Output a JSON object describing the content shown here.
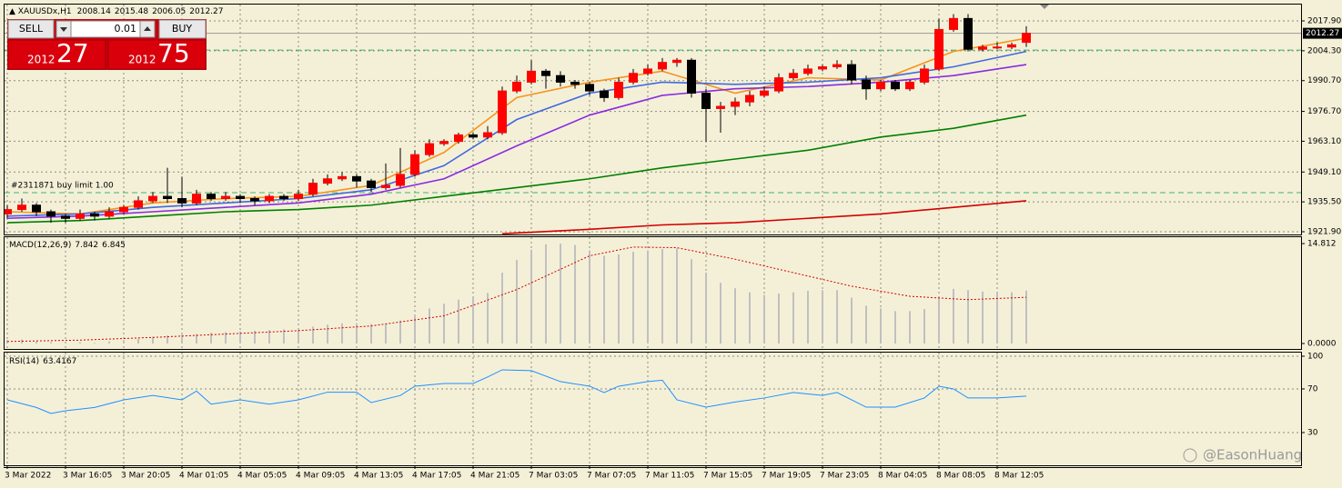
{
  "chart_data": [
    {
      "type": "candlestick",
      "title": "XAUUSDx,H1",
      "open": [
        1930,
        1932,
        1934,
        1931,
        1929,
        1928,
        1930,
        1929,
        1931,
        1933,
        1936,
        1938,
        1937,
        1935,
        1939,
        1937,
        1938,
        1937,
        1936,
        1938,
        1937,
        1939,
        1944,
        1946,
        1947,
        1945,
        1942,
        1943,
        1948,
        1957,
        1962,
        1963,
        1966,
        1965,
        1967,
        1986,
        1990,
        1995,
        1993,
        1990,
        1989,
        1986,
        1983,
        1990,
        1994,
        1996,
        1999,
        2000,
        1985,
        1978,
        1979,
        1981,
        1984,
        1986,
        1992,
        1994,
        1996,
        1997,
        1998,
        1991,
        1987,
        1990,
        1987,
        1990,
        1996,
        2014,
        2019,
        2005,
        2006,
        2006,
        2008.14
      ],
      "high": [
        1934,
        1937,
        1935,
        1932,
        1930,
        1932,
        1931,
        1933,
        1934,
        1938,
        1940,
        1951,
        1947,
        1941,
        1940,
        1940,
        1939,
        1938,
        1939,
        1939,
        1941,
        1946,
        1948,
        1949,
        1948,
        1946,
        1953,
        1960,
        1959,
        1964,
        1964,
        1967,
        1967,
        1970,
        1988,
        1993,
        2000,
        1996,
        1995,
        1991,
        1990,
        1987,
        1992,
        1996,
        1998,
        2001,
        2001,
        2001,
        1987,
        1981,
        1983,
        1986,
        1988,
        1994,
        1996,
        1998,
        1998,
        2000,
        2000,
        1993,
        1991,
        1991,
        1991,
        1998,
        2019,
        2021,
        2021,
        2007,
        2008,
        2008,
        2015.48
      ],
      "low": [
        1928,
        1931,
        1929,
        1926,
        1926,
        1927,
        1927,
        1928,
        1930,
        1932,
        1935,
        1935,
        1933,
        1934,
        1936,
        1936,
        1935,
        1934,
        1935,
        1936,
        1936,
        1938,
        1943,
        1945,
        1942,
        1940,
        1941,
        1942,
        1947,
        1956,
        1961,
        1962,
        1964,
        1964,
        1966,
        1985,
        1989,
        1987,
        1988,
        1987,
        1984,
        1981,
        1982,
        1989,
        1993,
        1995,
        1997,
        1983,
        1963,
        1967,
        1975,
        1979,
        1983,
        1985,
        1991,
        1993,
        1995,
        1996,
        1989,
        1982,
        1986,
        1986,
        1986,
        1989,
        1995,
        2013,
        2004,
        2004,
        2005,
        2005,
        2006.05
      ],
      "close": [
        1932,
        1934,
        1931,
        1929,
        1928,
        1930,
        1929,
        1931,
        1933,
        1936,
        1938,
        1937,
        1935,
        1939,
        1937,
        1938,
        1937,
        1936,
        1938,
        1937,
        1939,
        1944,
        1946,
        1947,
        1945,
        1942,
        1943,
        1948,
        1957,
        1962,
        1963,
        1966,
        1965,
        1967,
        1986,
        1990,
        1995,
        1993,
        1990,
        1989,
        1986,
        1983,
        1990,
        1994,
        1996,
        1999,
        2000,
        1985,
        1978,
        1979,
        1981,
        1984,
        1986,
        1992,
        1994,
        1996,
        1997,
        1998,
        1991,
        1987,
        1990,
        1987,
        1990,
        1996,
        2014,
        2019,
        2005,
        2006,
        2006,
        2007,
        2012.27
      ],
      "up_color": "#ff0000",
      "down_color": "#000000",
      "series": [
        {
          "color": "#f7941d",
          "x": [
            0,
            5,
            10,
            15,
            20,
            25,
            30,
            35,
            40,
            45,
            50,
            55,
            60,
            65,
            70
          ],
          "values": [
            1931,
            1930,
            1935,
            1937,
            1938,
            1943,
            1958,
            1983,
            1990,
            1995,
            1985,
            1992,
            1991,
            2004,
            2010
          ]
        },
        {
          "color": "#4169e1",
          "x": [
            0,
            5,
            10,
            15,
            20,
            25,
            30,
            35,
            40,
            45,
            50,
            55,
            60,
            65,
            70
          ],
          "values": [
            1929,
            1930,
            1933,
            1935,
            1937,
            1941,
            1952,
            1973,
            1985,
            1990,
            1989,
            1990,
            1992,
            1997,
            2004
          ]
        },
        {
          "color": "#8a2be2",
          "x": [
            0,
            5,
            10,
            15,
            20,
            25,
            30,
            35,
            40,
            45,
            50,
            55,
            60,
            65,
            70
          ],
          "values": [
            1928,
            1929,
            1931,
            1933,
            1935,
            1939,
            1946,
            1961,
            1975,
            1984,
            1987,
            1988,
            1990,
            1993,
            1998
          ]
        },
        {
          "color": "#008000",
          "x": [
            0,
            5,
            10,
            15,
            20,
            25,
            30,
            35,
            40,
            45,
            50,
            55,
            60,
            65,
            70
          ],
          "values": [
            1926,
            1927,
            1929,
            1931,
            1932,
            1934,
            1938,
            1942,
            1946,
            1951,
            1955,
            1959,
            1965,
            1969,
            1975
          ]
        },
        {
          "color": "#d40000",
          "x": [
            34,
            40,
            45,
            50,
            55,
            60,
            65,
            70
          ],
          "values": [
            1921,
            1923,
            1925,
            1926,
            1928,
            1930,
            1933,
            1936
          ]
        }
      ],
      "levels": [
        2004.6,
        1939.7
      ],
      "level_color": "#3cb371",
      "order_label": "#2311871 buy limit 1.00",
      "ylim": [
        1920.66,
        2025.35
      ],
      "yticks": [
        {
          "value": 2017.9,
          "label": "2017.90"
        },
        {
          "value": 2004.3,
          "label": "2004.30"
        },
        {
          "value": 1990.7,
          "label": "1990.70"
        },
        {
          "value": 1976.7,
          "label": "1976.70"
        },
        {
          "value": 1963.1,
          "label": "1963.10"
        },
        {
          "value": 1949.1,
          "label": "1949.10"
        },
        {
          "value": 1935.5,
          "label": "1935.50"
        },
        {
          "value": 1921.9,
          "label": "1921.90"
        }
      ],
      "xticks": [
        {
          "value": 0,
          "label": "3 Mar 2022"
        },
        {
          "value": 4,
          "label": "3 Mar 16:05"
        },
        {
          "value": 8,
          "label": "3 Mar 20:05"
        },
        {
          "value": 12,
          "label": "4 Mar 01:05"
        },
        {
          "value": 16,
          "label": "4 Mar 05:05"
        },
        {
          "value": 20,
          "label": "4 Mar 09:05"
        },
        {
          "value": 24,
          "label": "4 Mar 13:05"
        },
        {
          "value": 28,
          "label": "4 Mar 17:05"
        },
        {
          "value": 32,
          "label": "4 Mar 21:05"
        },
        {
          "value": 36,
          "label": "7 Mar 03:05"
        },
        {
          "value": 40,
          "label": "7 Mar 07:05"
        },
        {
          "value": 44,
          "label": "7 Mar 11:05"
        },
        {
          "value": 48,
          "label": "7 Mar 15:05"
        },
        {
          "value": 52,
          "label": "7 Mar 19:05"
        },
        {
          "value": 56,
          "label": "7 Mar 23:05"
        },
        {
          "value": 60,
          "label": "8 Mar 04:05"
        },
        {
          "value": 64,
          "label": "8 Mar 08:05"
        },
        {
          "value": 68,
          "label": "8 Mar 12:05"
        }
      ],
      "grid": true
    },
    {
      "type": "macd",
      "label": "MACD(12,26,9)",
      "values": [
        0.5,
        0.6,
        0.3,
        0.2,
        0.1,
        0.2,
        0.1,
        0.3,
        0.5,
        0.7,
        1.0,
        1.2,
        1.3,
        1.4,
        1.6,
        1.7,
        1.8,
        1.9,
        2.0,
        2.1,
        2.2,
        2.5,
        2.8,
        3.0,
        3.0,
        2.9,
        2.9,
        3.4,
        4.3,
        5.2,
        5.9,
        6.5,
        7.0,
        7.5,
        10.5,
        12.4,
        13.9,
        14.7,
        14.8,
        14.6,
        13.8,
        13.0,
        13.2,
        13.6,
        13.8,
        14.0,
        14.1,
        12.5,
        10.5,
        9.0,
        8.2,
        7.6,
        7.2,
        7.4,
        7.6,
        7.8,
        7.9,
        7.9,
        6.8,
        5.6,
        5.2,
        4.8,
        4.8,
        5.1,
        6.8,
        8.1,
        7.9,
        7.7,
        7.6,
        7.6,
        7.842
      ],
      "bar_color": "#c0c0c0",
      "signal": {
        "color": "#d40000",
        "x": [
          0,
          5,
          10,
          15,
          20,
          25,
          30,
          35,
          40,
          43,
          46,
          50,
          54,
          58,
          62,
          66,
          70
        ],
        "values": [
          0.3,
          0.5,
          0.9,
          1.4,
          1.9,
          2.6,
          4.1,
          8.0,
          13.0,
          14.3,
          14.2,
          12.5,
          10.5,
          8.5,
          7.0,
          6.5,
          6.845
        ]
      },
      "ylim": [
        -0.81,
        15.76
      ],
      "yticks": [
        14.812,
        {
          "value": 0,
          "label": "0.0000"
        }
      ]
    },
    {
      "type": "rsi",
      "label": "RSI(14)",
      "color": "#1e90ff",
      "x": [
        0,
        2,
        3,
        4,
        6,
        8,
        10,
        12,
        13,
        14,
        16,
        18,
        20,
        22,
        24,
        25,
        27,
        28,
        30,
        32,
        33,
        34,
        36,
        38,
        40,
        41,
        42,
        44,
        45,
        46,
        48,
        50,
        52,
        54,
        56,
        57,
        59,
        61,
        63,
        64,
        65,
        66,
        68,
        70
      ],
      "values": [
        60,
        53,
        47.5,
        50,
        53,
        60,
        64,
        60,
        68,
        56,
        60,
        56,
        60,
        67,
        67,
        57.5,
        64,
        72.5,
        75,
        75,
        81,
        87.5,
        86.7,
        76.7,
        72.5,
        66.7,
        72.5,
        76.7,
        78,
        60,
        53.3,
        58,
        61.7,
        66.7,
        64,
        66.7,
        53.3,
        53.3,
        61.7,
        72.5,
        70,
        61.7,
        61.7,
        63.4167
      ],
      "ylim": [
        0,
        103.3
      ],
      "yticks": [
        100,
        70,
        30
      ],
      "grid": true
    }
  ],
  "trade_panel": {
    "sell": "SELL",
    "lot": "0.01",
    "buy": "BUY",
    "bid_figure": "2012",
    "bid_pips": "27",
    "ask_figure": "2012",
    "ask_pips": "75"
  },
  "watermark": "@EasonHuang"
}
